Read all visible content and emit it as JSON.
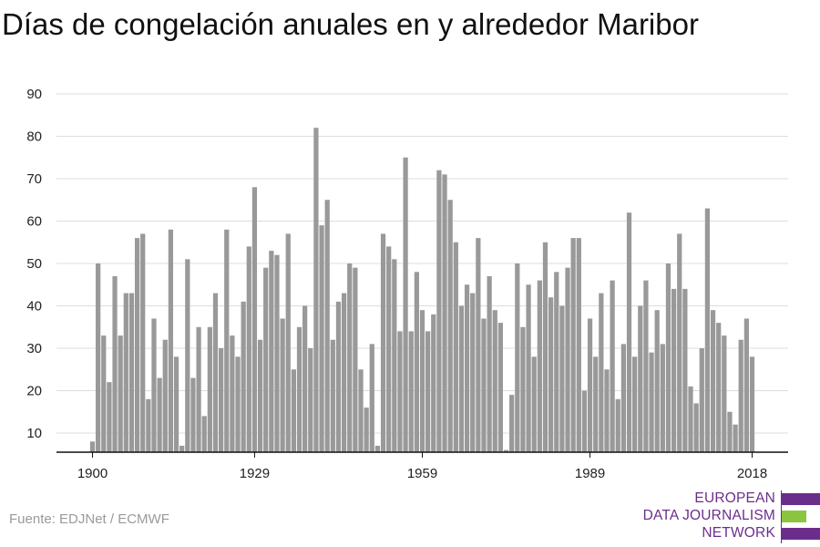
{
  "title": "Días de congelación anuales en y alrededor Maribor",
  "source": "Fuente: EDJNet / ECMWF",
  "logo": {
    "lines": [
      "EUROPEAN",
      "DATA JOURNALISM",
      "NETWORK"
    ],
    "colors": {
      "purple": "#6b2d8c",
      "green": "#8bc53f"
    }
  },
  "colors": {
    "bar": "#999999",
    "grid": "#dddddd",
    "axis": "#111111"
  },
  "chart_data": {
    "type": "bar",
    "title": "Días de congelación anuales en y alrededor Maribor",
    "xlabel": "",
    "ylabel": "",
    "ylim": [
      5,
      90
    ],
    "yticks": [
      10,
      20,
      30,
      40,
      50,
      60,
      70,
      80,
      90
    ],
    "xticks": [
      1900,
      1929,
      1959,
      1989,
      2018
    ],
    "grid": true,
    "x": [
      1900,
      1901,
      1902,
      1903,
      1904,
      1905,
      1906,
      1907,
      1908,
      1909,
      1910,
      1911,
      1912,
      1913,
      1914,
      1915,
      1916,
      1917,
      1918,
      1919,
      1920,
      1921,
      1922,
      1923,
      1924,
      1925,
      1926,
      1927,
      1928,
      1929,
      1930,
      1931,
      1932,
      1933,
      1934,
      1935,
      1936,
      1937,
      1938,
      1939,
      1940,
      1941,
      1942,
      1943,
      1944,
      1945,
      1946,
      1947,
      1948,
      1949,
      1950,
      1951,
      1952,
      1953,
      1954,
      1955,
      1956,
      1957,
      1958,
      1959,
      1960,
      1961,
      1962,
      1963,
      1964,
      1965,
      1966,
      1967,
      1968,
      1969,
      1970,
      1971,
      1972,
      1973,
      1974,
      1975,
      1976,
      1977,
      1978,
      1979,
      1980,
      1981,
      1982,
      1983,
      1984,
      1985,
      1986,
      1987,
      1988,
      1989,
      1990,
      1991,
      1992,
      1993,
      1994,
      1995,
      1996,
      1997,
      1998,
      1999,
      2000,
      2001,
      2002,
      2003,
      2004,
      2005,
      2006,
      2007,
      2008,
      2009,
      2010,
      2011,
      2012,
      2013,
      2014,
      2015,
      2016,
      2017,
      2018
    ],
    "values": [
      8,
      50,
      33,
      22,
      47,
      33,
      43,
      43,
      56,
      57,
      18,
      37,
      23,
      32,
      58,
      28,
      7,
      51,
      23,
      35,
      14,
      35,
      43,
      30,
      58,
      33,
      28,
      41,
      54,
      68,
      32,
      49,
      53,
      52,
      37,
      57,
      25,
      35,
      40,
      30,
      82,
      59,
      65,
      32,
      41,
      43,
      50,
      49,
      25,
      16,
      31,
      7,
      57,
      54,
      51,
      34,
      75,
      34,
      48,
      39,
      34,
      38,
      72,
      71,
      65,
      55,
      40,
      45,
      43,
      56,
      37,
      47,
      39,
      36,
      6,
      19,
      50,
      35,
      45,
      28,
      46,
      55,
      42,
      48,
      40,
      49,
      56,
      56,
      20,
      37,
      28,
      43,
      25,
      46,
      18,
      31,
      62,
      28,
      40,
      46,
      29,
      39,
      31,
      50,
      44,
      57,
      44,
      21,
      17,
      30,
      63,
      39,
      36,
      33,
      15,
      12,
      32,
      37,
      28
    ]
  }
}
